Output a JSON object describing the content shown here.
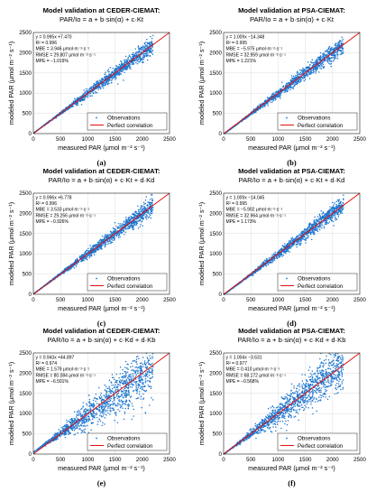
{
  "legend": {
    "observations": "Observations",
    "perfect": "Perfect correlation"
  },
  "colors": {
    "observations": "#1f77d0",
    "perfect": "#e01010"
  },
  "chart_data": [
    {
      "type": "scatter",
      "id": "a",
      "title": "Model validation at CEDER-CIEMAT:",
      "formula": "PAR/Io = a + b·sin(α) + c·Kt",
      "xlabel": "measured PAR (μmol m⁻² s⁻¹)",
      "ylabel": "modeled PAR (μmol m⁻² s⁻¹)",
      "xlim": [
        0,
        2500
      ],
      "ylim": [
        0,
        2500
      ],
      "xticks": [
        "0",
        "500",
        "1000",
        "1500",
        "2000",
        "2500"
      ],
      "yticks": [
        "0",
        "500",
        "1000",
        "1500",
        "2000",
        "2500"
      ],
      "grid": true,
      "legend_position": "bottom-right",
      "stats": [
        "y = 0.995x +7.470",
        "R² = 0.996",
        "MBE = 3.946 μmol·m⁻²·s⁻¹",
        "RMSE = 29.807 μmol·m⁻²·s⁻¹",
        "MPE = −1.019%"
      ],
      "fit": {
        "slope": 0.995,
        "intercept": 7.47
      },
      "series": [
        {
          "name": "Observations",
          "kind": "points",
          "x_range": [
            0,
            2200
          ],
          "spread": 0.05
        },
        {
          "name": "Perfect correlation",
          "kind": "line",
          "x": [
            0,
            2500
          ],
          "y": [
            0,
            2500
          ]
        }
      ],
      "letter": "(a)"
    },
    {
      "type": "scatter",
      "id": "b",
      "title": "Model validation at PSA-CIEMAT:",
      "formula": "PAR/Io = a + b·sin(α) + c·Kt",
      "xlabel": "measured PAR (μmol m⁻² s⁻¹)",
      "ylabel": "modeled PAR (μmol m⁻² s⁻¹)",
      "xlim": [
        0,
        2500
      ],
      "ylim": [
        0,
        2500
      ],
      "xticks": [
        "0",
        "500",
        "1000",
        "1500",
        "2000",
        "2500"
      ],
      "yticks": [
        "0",
        "500",
        "1000",
        "1500",
        "2000",
        "2500"
      ],
      "grid": true,
      "legend_position": "bottom-right",
      "stats": [
        "y = 1.009x −14.348",
        "R² = 0.995",
        "MBE = −5.975 μmol·m⁻²·s⁻¹",
        "RMSE = 32.959 μmol·m⁻²·s⁻¹",
        "MPE = 1.221%"
      ],
      "fit": {
        "slope": 1.009,
        "intercept": -14.348
      },
      "series": [
        {
          "name": "Observations",
          "kind": "points",
          "x_range": [
            0,
            2200
          ],
          "spread": 0.05
        },
        {
          "name": "Perfect correlation",
          "kind": "line",
          "x": [
            0,
            2500
          ],
          "y": [
            0,
            2500
          ]
        }
      ],
      "letter": "(b)"
    },
    {
      "type": "scatter",
      "id": "c",
      "title": "Model validation at CEDER-CIEMAT:",
      "formula": "PAR/Io = a + b·sin(α) + c·Kt + d·Kd",
      "xlabel": "measured PAR (μmol m⁻² s⁻¹)",
      "ylabel": "modeled PAR (μmol m⁻² s⁻¹)",
      "xlim": [
        0,
        2500
      ],
      "ylim": [
        0,
        2500
      ],
      "xticks": [
        "0",
        "500",
        "1000",
        "1500",
        "2000",
        "2500"
      ],
      "yticks": [
        "0",
        "500",
        "1000",
        "1500",
        "2000",
        "2500"
      ],
      "grid": true,
      "legend_position": "bottom-right",
      "stats": [
        "y = 0.996x +6.778",
        "R² = 0.996",
        "MBE = 3.533 μmol·m⁻²·s⁻¹",
        "RMSE = 29.256 μmol·m⁻²·s⁻¹",
        "MPE = −0.926%"
      ],
      "fit": {
        "slope": 0.996,
        "intercept": 6.778
      },
      "series": [
        {
          "name": "Observations",
          "kind": "points",
          "x_range": [
            0,
            2200
          ],
          "spread": 0.05
        },
        {
          "name": "Perfect correlation",
          "kind": "line",
          "x": [
            0,
            2500
          ],
          "y": [
            0,
            2500
          ]
        }
      ],
      "letter": "(c)"
    },
    {
      "type": "scatter",
      "id": "d",
      "title": "Model validation at PSA-CIEMAT:",
      "formula": "PAR/Io = a + b·sin(α) + c·Kt + d·Kd",
      "xlabel": "measured PAR (μmol m⁻² s⁻¹)",
      "ylabel": "modeled PAR (μmol m⁻² s⁻¹)",
      "xlim": [
        0,
        2500
      ],
      "ylim": [
        0,
        2500
      ],
      "xticks": [
        "0",
        "500",
        "1000",
        "1500",
        "2000",
        "2500"
      ],
      "yticks": [
        "0",
        "500",
        "1000",
        "1500",
        "2000",
        "2500"
      ],
      "grid": true,
      "legend_position": "bottom-right",
      "stats": [
        "y = 1.009x −14.045",
        "R² = 0.995",
        "MBE = −5.902 μmol·m⁻²·s⁻¹",
        "RMSE = 32.964 μmol·m⁻²·s⁻¹",
        "MPE = 1.173%"
      ],
      "fit": {
        "slope": 1.009,
        "intercept": -14.045
      },
      "series": [
        {
          "name": "Observations",
          "kind": "points",
          "x_range": [
            0,
            2200
          ],
          "spread": 0.05
        },
        {
          "name": "Perfect correlation",
          "kind": "line",
          "x": [
            0,
            2500
          ],
          "y": [
            0,
            2500
          ]
        }
      ],
      "letter": "(d)"
    },
    {
      "type": "scatter",
      "id": "e",
      "title": "Model validation at CEDER-CIEMAT:",
      "formula": "PAR/Io = a + b·sin(α) + c·Kd + d·Kb",
      "xlabel": "measured PAR (μmol m⁻² s⁻¹)",
      "ylabel": "modeled PAR (μmol m⁻² s⁻¹)",
      "xlim": [
        0,
        2500
      ],
      "ylim": [
        0,
        2500
      ],
      "xticks": [
        "0",
        "500",
        "1000",
        "1500",
        "2000",
        "2500"
      ],
      "yticks": [
        "0",
        "500",
        "1000",
        "1500",
        "2000",
        "2500"
      ],
      "grid": true,
      "legend_position": "bottom-right",
      "stats": [
        "y = 0.943x +44.897",
        "R² = 0.974",
        "MBE = 1.579 μmol·m⁻²·s⁻¹",
        "RMSE = 80.084 μmol·m⁻²·s⁻¹",
        "MPE = −6.501%"
      ],
      "fit": {
        "slope": 0.943,
        "intercept": 44.897
      },
      "series": [
        {
          "name": "Observations",
          "kind": "points",
          "x_range": [
            0,
            2200
          ],
          "spread": 0.16
        },
        {
          "name": "Perfect correlation",
          "kind": "line",
          "x": [
            0,
            2500
          ],
          "y": [
            0,
            2500
          ]
        }
      ],
      "letter": "(e)"
    },
    {
      "type": "scatter",
      "id": "f",
      "title": "Model validation at PSA-CIEMAT:",
      "formula": "PAR/Io = a + b·sin(α) + c·Kd + d·Kb",
      "xlabel": "measured PAR (μmol m⁻² s⁻¹)",
      "ylabel": "modeled PAR (μmol m⁻² s⁻¹)",
      "xlim": [
        0,
        2500
      ],
      "ylim": [
        0,
        2500
      ],
      "xticks": [
        "0",
        "500",
        "1000",
        "1500",
        "2000",
        "2500"
      ],
      "yticks": [
        "0",
        "500",
        "1000",
        "1500",
        "2000",
        "2500"
      ],
      "grid": true,
      "legend_position": "bottom-right",
      "stats": [
        "y = 1.004x −3.631",
        "R² = 0.977",
        "MBE = 0.410 μmol·m⁻²·s⁻¹",
        "RMSE = 68.172 μmol·m⁻²·s⁻¹",
        "MPE = −0.568%"
      ],
      "fit": {
        "slope": 1.004,
        "intercept": -3.631
      },
      "series": [
        {
          "name": "Observations",
          "kind": "points",
          "x_range": [
            0,
            2200
          ],
          "spread": 0.14
        },
        {
          "name": "Perfect correlation",
          "kind": "line",
          "x": [
            0,
            2500
          ],
          "y": [
            0,
            2500
          ]
        }
      ],
      "letter": "(f)"
    }
  ]
}
